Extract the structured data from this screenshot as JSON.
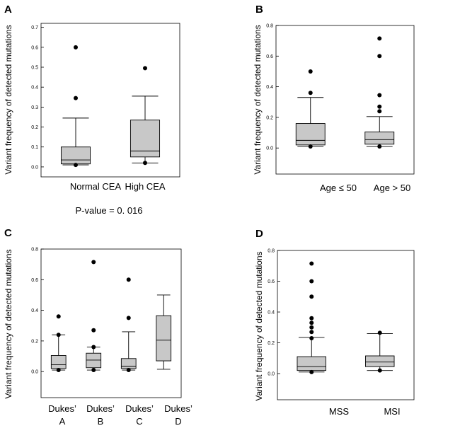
{
  "chart_data": [
    {
      "panel": "A",
      "type": "box",
      "ylabel": "Variant frequency of detected mutations",
      "yticks": [
        "0.0",
        "0.1",
        "0.2",
        "0.3",
        "0.4",
        "0.5",
        "0.6",
        "0.7"
      ],
      "ylim": [
        -0.05,
        0.72
      ],
      "categories": [
        [
          "Normal CEA"
        ],
        [
          "High CEA"
        ]
      ],
      "boxes": [
        {
          "min": 0.01,
          "q1": 0.015,
          "median": 0.035,
          "q3": 0.1,
          "max": 0.245,
          "outliers": [
            0.01,
            0.345,
            0.6
          ]
        },
        {
          "min": 0.02,
          "q1": 0.05,
          "median": 0.08,
          "q3": 0.235,
          "max": 0.355,
          "outliers": [
            0.02,
            0.495
          ]
        }
      ],
      "note": "P-value = 0. 016"
    },
    {
      "panel": "B",
      "type": "box",
      "ylabel": "Variant frequency of detected mutations",
      "yticks": [
        "0.0",
        "0.2",
        "0.4",
        "0.6",
        "0.8"
      ],
      "ylim": [
        -0.17,
        0.8
      ],
      "categories": [
        [
          "Age ≤ 50"
        ],
        [
          "Age > 50"
        ]
      ],
      "boxes": [
        {
          "min": 0.01,
          "q1": 0.02,
          "median": 0.05,
          "q3": 0.16,
          "max": 0.33,
          "outliers": [
            0.01,
            0.36,
            0.5
          ]
        },
        {
          "min": 0.01,
          "q1": 0.025,
          "median": 0.055,
          "q3": 0.105,
          "max": 0.205,
          "outliers": [
            0.01,
            0.24,
            0.27,
            0.345,
            0.6,
            0.715
          ]
        }
      ]
    },
    {
      "panel": "C",
      "type": "box",
      "ylabel": "Variant frequency of detected mutations",
      "yticks": [
        "0.0",
        "0.2",
        "0.4",
        "0.6",
        "0.8"
      ],
      "ylim": [
        -0.17,
        0.8
      ],
      "categories": [
        [
          "Dukes’",
          "A"
        ],
        [
          "Dukes’",
          "B"
        ],
        [
          "Dukes’",
          "C"
        ],
        [
          "Dukes’",
          "D"
        ]
      ],
      "boxes": [
        {
          "min": 0.01,
          "q1": 0.02,
          "median": 0.045,
          "q3": 0.105,
          "max": 0.24,
          "outliers": [
            0.01,
            0.24,
            0.36
          ]
        },
        {
          "min": 0.01,
          "q1": 0.025,
          "median": 0.075,
          "q3": 0.12,
          "max": 0.16,
          "outliers": [
            0.01,
            0.16,
            0.27,
            0.715
          ]
        },
        {
          "min": 0.01,
          "q1": 0.02,
          "median": 0.035,
          "q3": 0.085,
          "max": 0.26,
          "outliers": [
            0.01,
            0.35,
            0.6
          ]
        },
        {
          "min": 0.015,
          "q1": 0.07,
          "median": 0.205,
          "q3": 0.365,
          "max": 0.5,
          "outliers": []
        }
      ]
    },
    {
      "panel": "D",
      "type": "box",
      "ylabel": "Variant frequency of detected mutations",
      "yticks": [
        "0.0",
        "0.2",
        "0.4",
        "0.6",
        "0.8"
      ],
      "ylim": [
        -0.17,
        0.8
      ],
      "categories": [
        [
          "MSS"
        ],
        [
          "MSI"
        ]
      ],
      "boxes": [
        {
          "min": 0.01,
          "q1": 0.02,
          "median": 0.045,
          "q3": 0.11,
          "max": 0.235,
          "outliers": [
            0.01,
            0.23,
            0.27,
            0.3,
            0.33,
            0.36,
            0.5,
            0.6,
            0.715
          ]
        },
        {
          "min": 0.02,
          "q1": 0.045,
          "median": 0.075,
          "q3": 0.115,
          "max": 0.26,
          "outliers": [
            0.02,
            0.265
          ]
        }
      ]
    }
  ]
}
